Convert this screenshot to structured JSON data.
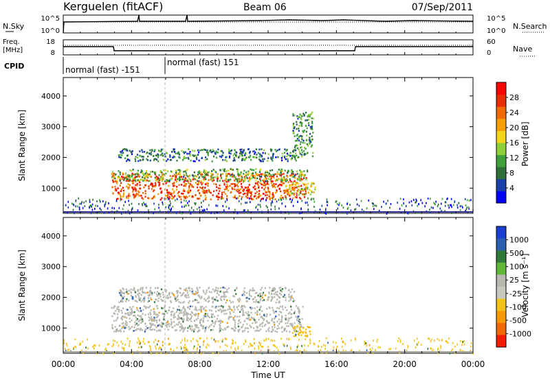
{
  "header": {
    "station": "Kerguelen (fitACF)",
    "beam": "Beam 06",
    "date": "07/Sep/2011"
  },
  "status_panels": {
    "nsky_label": "N.Sky",
    "nsky_ticks": [
      "10^5",
      "10^0"
    ],
    "nsearch_label": "N.Search",
    "nsearch_ticks": [
      "10^5",
      "10^0"
    ],
    "freq_label": "Freq.",
    "freq_unit": "[MHz]",
    "freq_ticks": [
      "18",
      "8"
    ],
    "nave_label": "Nave",
    "nave_ticks": [
      "60",
      "0"
    ],
    "cpid_label": "CPID",
    "cpid_segments": [
      "normal (fast) -151",
      "normal (fast) 151"
    ]
  },
  "axes": {
    "ylabel": "Slant Range [km]",
    "xlabel": "Time UT",
    "yticks": [
      "1000",
      "2000",
      "3000",
      "4000"
    ],
    "xticks": [
      "00:00",
      "04:00",
      "08:00",
      "12:00",
      "16:00",
      "20:00",
      "00:00"
    ]
  },
  "colorbars": {
    "power": {
      "title": "Power [dB]",
      "labels": [
        "28",
        "24",
        "20",
        "16",
        "12",
        "8",
        "4"
      ],
      "colors": [
        "#0000ff",
        "#1a3fa8",
        "#2f6f3a",
        "#3fa03a",
        "#8fcf3a",
        "#f2d41a",
        "#f5a000",
        "#f06a00",
        "#e82d00",
        "#ff0000"
      ]
    },
    "velocity": {
      "title": "Velocity [m s⁻¹]",
      "labels": [
        "1000",
        "500",
        "100",
        "25",
        "-25",
        "-100",
        "-500",
        "-1000"
      ],
      "colors": [
        "#1a3fcf",
        "#2a5fb0",
        "#2f7a3a",
        "#5fb83a",
        "#b8b8b0",
        "#c8c8c0",
        "#f2c21a",
        "#f59a00",
        "#f06a00",
        "#ff1a00"
      ]
    }
  },
  "chart_data": [
    {
      "type": "heatmap",
      "title": "Power [dB]",
      "xlabel": "Time UT",
      "ylabel": "Slant Range [km]",
      "xlim": [
        0,
        24
      ],
      "ylim": [
        180,
        4600
      ],
      "clim": [
        0,
        32
      ],
      "regions": [
        {
          "t0": 2.8,
          "t1": 14.2,
          "r0": 650,
          "r1": 1500,
          "level": 26
        },
        {
          "t0": 2.8,
          "t1": 14.3,
          "r0": 1250,
          "r1": 1650,
          "level": 12
        },
        {
          "t0": 3.2,
          "t1": 13.6,
          "r0": 1900,
          "r1": 2300,
          "level": 8
        },
        {
          "t0": 13.4,
          "t1": 14.6,
          "r0": 2000,
          "r1": 3500,
          "level": 10
        },
        {
          "t0": 13.0,
          "t1": 14.8,
          "r0": 800,
          "r1": 1200,
          "level": 16
        },
        {
          "t0": 0.0,
          "t1": 24.0,
          "r0": 200,
          "r1": 700,
          "level": 6
        }
      ]
    },
    {
      "type": "heatmap",
      "title": "Velocity [m s⁻¹]",
      "xlabel": "Time UT",
      "ylabel": "Slant Range [km]",
      "xlim": [
        0,
        24
      ],
      "ylim": [
        180,
        4600
      ],
      "clim": [
        -1000,
        1000
      ],
      "regions": [
        {
          "t0": 2.8,
          "t1": 14.0,
          "r0": 900,
          "r1": 1750,
          "level": 0
        },
        {
          "t0": 3.2,
          "t1": 13.5,
          "r0": 1850,
          "r1": 2350,
          "level": 0
        },
        {
          "t0": 13.3,
          "t1": 14.5,
          "r0": 700,
          "r1": 1100,
          "level": -100
        },
        {
          "t0": 0.0,
          "t1": 24.0,
          "r0": 200,
          "r1": 700,
          "level": -100
        }
      ]
    }
  ]
}
